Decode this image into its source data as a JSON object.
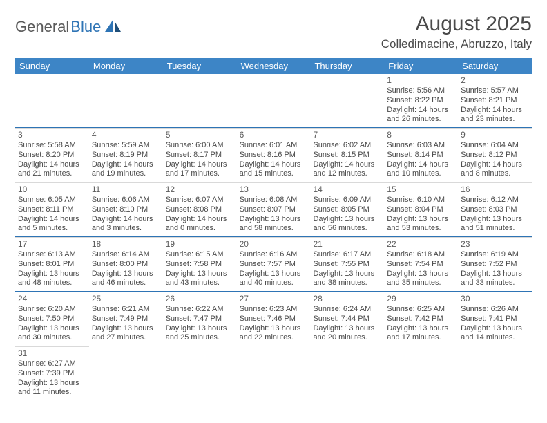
{
  "logo": {
    "general": "General",
    "blue": "Blue"
  },
  "title": "August 2025",
  "location": "Colledimacine, Abruzzo, Italy",
  "colors": {
    "header_bg": "#3d85c6",
    "header_text": "#ffffff",
    "row_border": "#2e74b5",
    "cell_top": "#d9d9d9",
    "text": "#4a4a4a"
  },
  "weekdays": [
    "Sunday",
    "Monday",
    "Tuesday",
    "Wednesday",
    "Thursday",
    "Friday",
    "Saturday"
  ],
  "weeks": [
    [
      null,
      null,
      null,
      null,
      null,
      {
        "n": "1",
        "sr": "5:56 AM",
        "ss": "8:22 PM",
        "dl": "14 hours and 26 minutes."
      },
      {
        "n": "2",
        "sr": "5:57 AM",
        "ss": "8:21 PM",
        "dl": "14 hours and 23 minutes."
      }
    ],
    [
      {
        "n": "3",
        "sr": "5:58 AM",
        "ss": "8:20 PM",
        "dl": "14 hours and 21 minutes."
      },
      {
        "n": "4",
        "sr": "5:59 AM",
        "ss": "8:19 PM",
        "dl": "14 hours and 19 minutes."
      },
      {
        "n": "5",
        "sr": "6:00 AM",
        "ss": "8:17 PM",
        "dl": "14 hours and 17 minutes."
      },
      {
        "n": "6",
        "sr": "6:01 AM",
        "ss": "8:16 PM",
        "dl": "14 hours and 15 minutes."
      },
      {
        "n": "7",
        "sr": "6:02 AM",
        "ss": "8:15 PM",
        "dl": "14 hours and 12 minutes."
      },
      {
        "n": "8",
        "sr": "6:03 AM",
        "ss": "8:14 PM",
        "dl": "14 hours and 10 minutes."
      },
      {
        "n": "9",
        "sr": "6:04 AM",
        "ss": "8:12 PM",
        "dl": "14 hours and 8 minutes."
      }
    ],
    [
      {
        "n": "10",
        "sr": "6:05 AM",
        "ss": "8:11 PM",
        "dl": "14 hours and 5 minutes."
      },
      {
        "n": "11",
        "sr": "6:06 AM",
        "ss": "8:10 PM",
        "dl": "14 hours and 3 minutes."
      },
      {
        "n": "12",
        "sr": "6:07 AM",
        "ss": "8:08 PM",
        "dl": "14 hours and 0 minutes."
      },
      {
        "n": "13",
        "sr": "6:08 AM",
        "ss": "8:07 PM",
        "dl": "13 hours and 58 minutes."
      },
      {
        "n": "14",
        "sr": "6:09 AM",
        "ss": "8:05 PM",
        "dl": "13 hours and 56 minutes."
      },
      {
        "n": "15",
        "sr": "6:10 AM",
        "ss": "8:04 PM",
        "dl": "13 hours and 53 minutes."
      },
      {
        "n": "16",
        "sr": "6:12 AM",
        "ss": "8:03 PM",
        "dl": "13 hours and 51 minutes."
      }
    ],
    [
      {
        "n": "17",
        "sr": "6:13 AM",
        "ss": "8:01 PM",
        "dl": "13 hours and 48 minutes."
      },
      {
        "n": "18",
        "sr": "6:14 AM",
        "ss": "8:00 PM",
        "dl": "13 hours and 46 minutes."
      },
      {
        "n": "19",
        "sr": "6:15 AM",
        "ss": "7:58 PM",
        "dl": "13 hours and 43 minutes."
      },
      {
        "n": "20",
        "sr": "6:16 AM",
        "ss": "7:57 PM",
        "dl": "13 hours and 40 minutes."
      },
      {
        "n": "21",
        "sr": "6:17 AM",
        "ss": "7:55 PM",
        "dl": "13 hours and 38 minutes."
      },
      {
        "n": "22",
        "sr": "6:18 AM",
        "ss": "7:54 PM",
        "dl": "13 hours and 35 minutes."
      },
      {
        "n": "23",
        "sr": "6:19 AM",
        "ss": "7:52 PM",
        "dl": "13 hours and 33 minutes."
      }
    ],
    [
      {
        "n": "24",
        "sr": "6:20 AM",
        "ss": "7:50 PM",
        "dl": "13 hours and 30 minutes."
      },
      {
        "n": "25",
        "sr": "6:21 AM",
        "ss": "7:49 PM",
        "dl": "13 hours and 27 minutes."
      },
      {
        "n": "26",
        "sr": "6:22 AM",
        "ss": "7:47 PM",
        "dl": "13 hours and 25 minutes."
      },
      {
        "n": "27",
        "sr": "6:23 AM",
        "ss": "7:46 PM",
        "dl": "13 hours and 22 minutes."
      },
      {
        "n": "28",
        "sr": "6:24 AM",
        "ss": "7:44 PM",
        "dl": "13 hours and 20 minutes."
      },
      {
        "n": "29",
        "sr": "6:25 AM",
        "ss": "7:42 PM",
        "dl": "13 hours and 17 minutes."
      },
      {
        "n": "30",
        "sr": "6:26 AM",
        "ss": "7:41 PM",
        "dl": "13 hours and 14 minutes."
      }
    ],
    [
      {
        "n": "31",
        "sr": "6:27 AM",
        "ss": "7:39 PM",
        "dl": "13 hours and 11 minutes."
      },
      null,
      null,
      null,
      null,
      null,
      null
    ]
  ],
  "labels": {
    "sunrise": "Sunrise: ",
    "sunset": "Sunset: ",
    "daylight": "Daylight: "
  }
}
